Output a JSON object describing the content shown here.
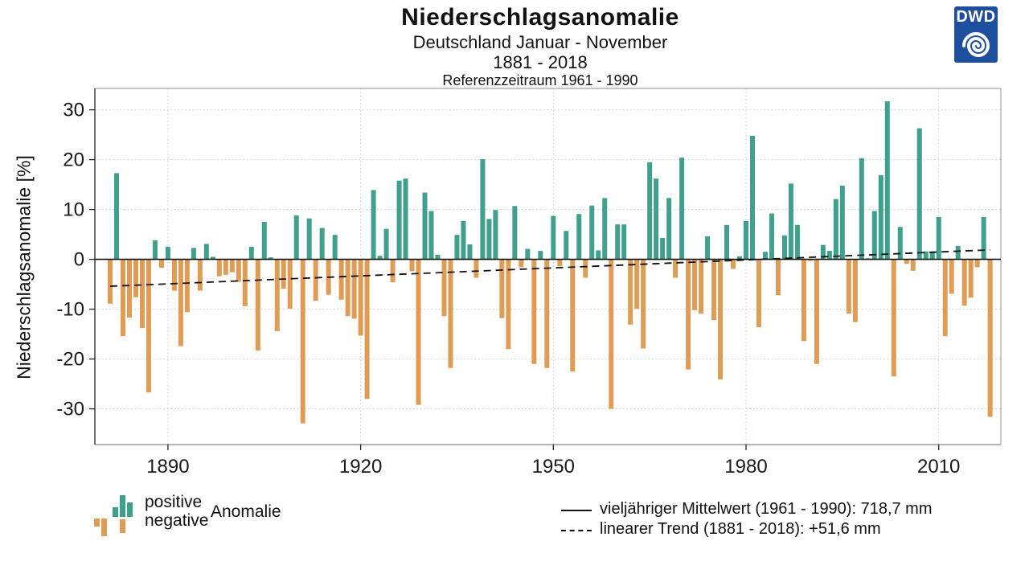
{
  "header": {
    "title": "Niederschlagsanomalie",
    "subtitle1": "Deutschland Januar - November",
    "subtitle2": "1881 - 2018",
    "subtitle3": "Referenzzeitraum 1961 - 1990"
  },
  "logo": {
    "text": "DWD",
    "color": "#1e4f9f"
  },
  "chart_data": {
    "type": "bar",
    "title": "Niederschlagsanomalie",
    "subtitle": "Deutschland Januar - November 1881 - 2018, Referenzzeitraum 1961 - 1990",
    "xlabel": "",
    "ylabel": "Niederschlagsanomalie [%]",
    "x_start": 1881,
    "x_end": 2018,
    "values": [
      -8.9,
      17.3,
      -15.4,
      -11.7,
      -7.6,
      -13.8,
      -26.7,
      3.8,
      -1.7,
      2.5,
      -6.3,
      -17.4,
      -10.6,
      2.3,
      -6.3,
      3.1,
      0.5,
      -3.4,
      -3.1,
      -2.6,
      -4.5,
      -9.4,
      2.5,
      -18.3,
      7.5,
      0.4,
      -14.4,
      -5.9,
      -9.9,
      8.8,
      -32.9,
      8.2,
      -8.3,
      6.3,
      -7.1,
      4.9,
      -8.1,
      -11.4,
      -11.9,
      -15.3,
      -28.0,
      13.9,
      0.7,
      6.1,
      -4.6,
      15.8,
      16.2,
      -2.4,
      -29.2,
      13.4,
      9.7,
      0.9,
      -11.4,
      -21.8,
      4.9,
      7.7,
      3.0,
      -3.7,
      20.1,
      8.1,
      9.9,
      -11.8,
      -18.0,
      10.7,
      -1.6,
      2.1,
      -21.0,
      1.7,
      -21.8,
      8.7,
      -1.4,
      5.7,
      -22.5,
      9.1,
      -3.7,
      10.8,
      1.8,
      12.3,
      -30.0,
      7.0,
      7.0,
      -13.1,
      -9.9,
      -17.9,
      19.5,
      16.2,
      4.3,
      12.3,
      -3.7,
      20.4,
      -22.1,
      -10.2,
      -10.9,
      4.6,
      -12.2,
      -24.1,
      6.9,
      -1.9,
      0.6,
      7.7,
      24.8,
      -13.6,
      1.5,
      9.2,
      -7.2,
      4.8,
      15.2,
      6.9,
      -16.4,
      -0.3,
      -21.0,
      2.9,
      1.7,
      12.1,
      14.8,
      -10.9,
      -12.6,
      20.3,
      0.2,
      9.7,
      16.9,
      31.7,
      -23.5,
      6.5,
      -0.9,
      -2.3,
      26.3,
      1.6,
      1.6,
      8.5,
      -15.4,
      -6.9,
      2.7,
      -9.3,
      -7.7,
      -1.6,
      8.5,
      -31.6
    ],
    "yticks": [
      30,
      20,
      10,
      0,
      -10,
      -20,
      -30
    ],
    "xticks": [
      1890,
      1920,
      1950,
      1980,
      2010
    ],
    "ylim": [
      -37.4,
      34.5
    ],
    "grid": "dotted",
    "positive_color": "#3fa18b",
    "negative_color": "#de9c55",
    "trend": {
      "start_year": 1881,
      "start_value": -5.4,
      "end_year": 2018,
      "end_value": 1.9
    },
    "legend_left": {
      "positive": "positive",
      "negative": "negative",
      "anomalie": "Anomalie"
    },
    "legend_right": [
      {
        "style": "solid",
        "label": "vieljähriger Mittelwert (1961 - 1990): 718,7 mm"
      },
      {
        "style": "dashed",
        "label": "linearer Trend (1881 - 2018): +51,6 mm"
      }
    ]
  }
}
